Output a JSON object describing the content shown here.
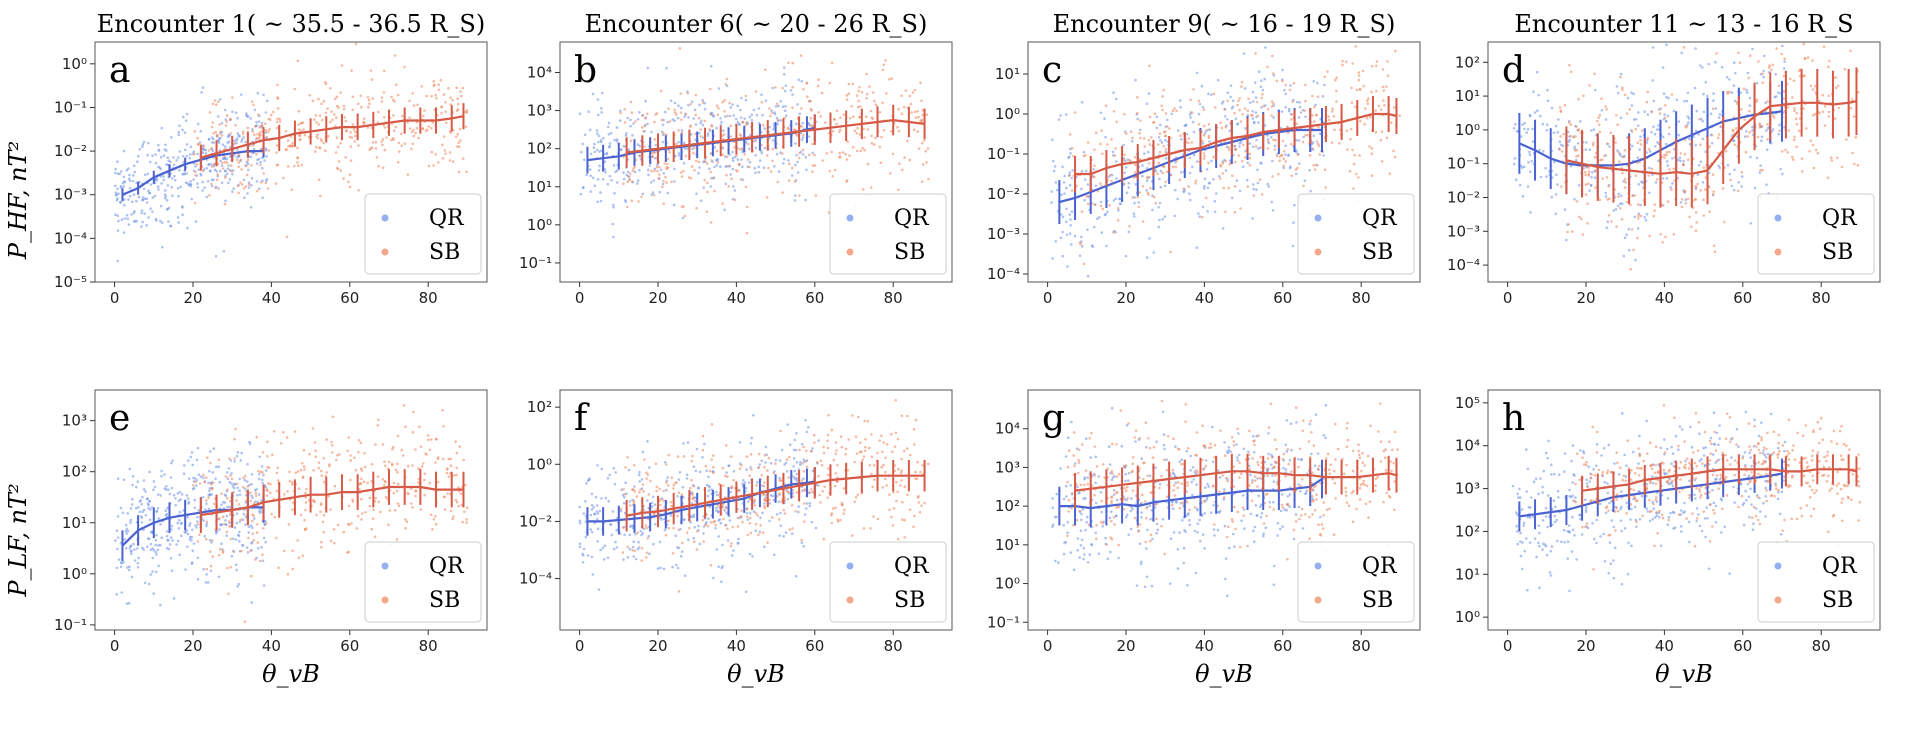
{
  "colors": {
    "qr": "#6b8fe6",
    "sb": "#ef8258",
    "qr_line": "#4a63d0",
    "sb_line": "#d65a45"
  },
  "figure": {
    "row_ylabels": [
      "P_HF, nT²",
      "P_LF, nT²"
    ],
    "xlabel": "θ_vB",
    "legend": {
      "qr": "QR",
      "sb": "SB"
    }
  },
  "chart_data": [
    {
      "type": "scatter",
      "panel": "a",
      "title": "Encounter 1( ~ 35.5 - 36.5 R_S)",
      "ylim_exp": [
        -5,
        0.5
      ],
      "yticks": [
        "10⁻⁵",
        "10⁻⁴",
        "10⁻³",
        "10⁻²",
        "10⁻¹",
        "10⁰"
      ],
      "ytick_exps": [
        -5,
        -4,
        -3,
        -2,
        -1,
        0
      ],
      "xlim": [
        -5,
        95
      ],
      "xticks": [
        "0",
        "20",
        "40",
        "60",
        "80"
      ],
      "xtick_vals": [
        0,
        20,
        40,
        60,
        80
      ],
      "series": [
        {
          "name": "QR",
          "x": [
            2,
            6,
            10,
            14,
            18,
            22,
            26,
            30,
            34,
            38
          ],
          "y_exp": [
            -3.0,
            -2.85,
            -2.6,
            -2.45,
            -2.3,
            -2.2,
            -2.1,
            -2.05,
            -2.0,
            -2.0
          ],
          "err": 0.15,
          "spread": 0.55
        },
        {
          "name": "SB",
          "x": [
            22,
            26,
            30,
            34,
            38,
            42,
            46,
            50,
            54,
            58,
            62,
            66,
            70,
            74,
            78,
            82,
            86,
            89
          ],
          "y_exp": [
            -2.15,
            -2.05,
            -1.95,
            -1.85,
            -1.75,
            -1.7,
            -1.6,
            -1.55,
            -1.5,
            -1.45,
            -1.45,
            -1.4,
            -1.35,
            -1.3,
            -1.3,
            -1.3,
            -1.25,
            -1.2
          ],
          "err": 0.3,
          "spread": 0.6
        }
      ]
    },
    {
      "type": "scatter",
      "panel": "b",
      "title": "Encounter 6( ~ 20 - 26 R_S)",
      "ylim_exp": [
        -1.5,
        4.8
      ],
      "yticks": [
        "10⁻¹",
        "10⁰",
        "10¹",
        "10²",
        "10³",
        "10⁴"
      ],
      "ytick_exps": [
        -1,
        0,
        1,
        2,
        3,
        4
      ],
      "xlim": [
        -5,
        95
      ],
      "xticks": [
        "0",
        "20",
        "40",
        "60",
        "80"
      ],
      "xtick_vals": [
        0,
        20,
        40,
        60,
        80
      ],
      "series": [
        {
          "name": "QR",
          "x": [
            2,
            6,
            10,
            14,
            18,
            22,
            26,
            30,
            34,
            38,
            42,
            46,
            50,
            54,
            58,
            60
          ],
          "y_exp": [
            1.7,
            1.75,
            1.8,
            1.9,
            1.95,
            2.0,
            2.05,
            2.1,
            2.15,
            2.2,
            2.25,
            2.3,
            2.35,
            2.4,
            2.5,
            2.55
          ],
          "err": 0.35,
          "spread": 0.7
        },
        {
          "name": "SB",
          "x": [
            12,
            16,
            20,
            24,
            28,
            32,
            36,
            40,
            44,
            48,
            52,
            56,
            60,
            64,
            68,
            72,
            76,
            80,
            84,
            88
          ],
          "y_exp": [
            1.9,
            1.95,
            2.0,
            2.05,
            2.1,
            2.15,
            2.2,
            2.25,
            2.3,
            2.35,
            2.4,
            2.45,
            2.5,
            2.55,
            2.6,
            2.65,
            2.7,
            2.75,
            2.7,
            2.65
          ],
          "err": 0.4,
          "spread": 0.8
        }
      ]
    },
    {
      "type": "scatter",
      "panel": "c",
      "title": "Encounter 9( ~ 16 - 19 R_S)",
      "ylim_exp": [
        -4.2,
        1.8
      ],
      "yticks": [
        "10⁻⁴",
        "10⁻³",
        "10⁻²",
        "10⁻¹",
        "10⁰",
        "10¹"
      ],
      "ytick_exps": [
        -4,
        -3,
        -2,
        -1,
        0,
        1
      ],
      "xlim": [
        -5,
        95
      ],
      "xticks": [
        "0",
        "20",
        "40",
        "60",
        "80"
      ],
      "xtick_vals": [
        0,
        20,
        40,
        60,
        80
      ],
      "series": [
        {
          "name": "QR",
          "x": [
            3,
            7,
            11,
            15,
            19,
            23,
            27,
            31,
            35,
            39,
            43,
            47,
            51,
            55,
            59,
            63,
            67,
            70
          ],
          "y_exp": [
            -2.2,
            -2.1,
            -1.95,
            -1.8,
            -1.65,
            -1.5,
            -1.35,
            -1.2,
            -1.05,
            -0.9,
            -0.8,
            -0.7,
            -0.6,
            -0.5,
            -0.45,
            -0.4,
            -0.4,
            -0.4
          ],
          "err": 0.55,
          "spread": 0.9
        },
        {
          "name": "SB",
          "x": [
            7,
            11,
            15,
            19,
            23,
            27,
            31,
            35,
            39,
            43,
            47,
            51,
            55,
            59,
            63,
            67,
            71,
            75,
            79,
            83,
            87,
            89
          ],
          "y_exp": [
            -1.5,
            -1.5,
            -1.35,
            -1.25,
            -1.2,
            -1.1,
            -1.0,
            -0.9,
            -0.85,
            -0.7,
            -0.6,
            -0.55,
            -0.45,
            -0.4,
            -0.35,
            -0.3,
            -0.25,
            -0.2,
            -0.1,
            0.0,
            0.0,
            -0.05
          ],
          "err": 0.45,
          "spread": 0.85
        }
      ]
    },
    {
      "type": "scatter",
      "panel": "d",
      "title": "Encounter 11 ~ 13 - 16 R_S",
      "ylim_exp": [
        -4.5,
        2.6
      ],
      "yticks": [
        "10⁻⁴",
        "10⁻³",
        "10⁻²",
        "10⁻¹",
        "10⁰",
        "10¹",
        "10²"
      ],
      "ytick_exps": [
        -4,
        -3,
        -2,
        -1,
        0,
        1,
        2
      ],
      "xlim": [
        -5,
        95
      ],
      "xticks": [
        "0",
        "20",
        "40",
        "60",
        "80"
      ],
      "xtick_vals": [
        0,
        20,
        40,
        60,
        80
      ],
      "series": [
        {
          "name": "QR",
          "x": [
            3,
            7,
            11,
            15,
            19,
            23,
            27,
            31,
            35,
            39,
            43,
            47,
            51,
            55,
            59,
            63,
            67,
            70
          ],
          "y_exp": [
            -0.4,
            -0.6,
            -0.85,
            -1.0,
            -1.05,
            -1.05,
            -1.05,
            -1.0,
            -0.85,
            -0.6,
            -0.35,
            -0.15,
            0.05,
            0.25,
            0.35,
            0.45,
            0.5,
            0.55
          ],
          "err": 0.9,
          "spread": 1.1
        },
        {
          "name": "SB",
          "x": [
            15,
            19,
            23,
            27,
            31,
            35,
            39,
            43,
            47,
            51,
            55,
            59,
            63,
            67,
            71,
            75,
            79,
            83,
            87,
            89
          ],
          "y_exp": [
            -0.9,
            -1.0,
            -1.1,
            -1.15,
            -1.2,
            -1.25,
            -1.3,
            -1.25,
            -1.3,
            -1.2,
            -0.6,
            0.0,
            0.4,
            0.7,
            0.75,
            0.8,
            0.8,
            0.75,
            0.8,
            0.85
          ],
          "err": 1.0,
          "spread": 1.2
        }
      ]
    },
    {
      "type": "scatter",
      "panel": "e",
      "title": "",
      "ylim_exp": [
        -1.1,
        3.6
      ],
      "yticks": [
        "10⁻¹",
        "10⁰",
        "10¹",
        "10²",
        "10³"
      ],
      "ytick_exps": [
        -1,
        0,
        1,
        2,
        3
      ],
      "xlim": [
        -5,
        95
      ],
      "xticks": [
        "0",
        "20",
        "40",
        "60",
        "80"
      ],
      "xtick_vals": [
        0,
        20,
        40,
        60,
        80
      ],
      "series": [
        {
          "name": "QR",
          "x": [
            2,
            6,
            10,
            14,
            18,
            22,
            26,
            30,
            34,
            38
          ],
          "y_exp": [
            0.55,
            0.85,
            1.0,
            1.1,
            1.15,
            1.2,
            1.25,
            1.25,
            1.3,
            1.3
          ],
          "err": 0.3,
          "spread": 0.6
        },
        {
          "name": "SB",
          "x": [
            22,
            26,
            30,
            34,
            38,
            42,
            46,
            50,
            54,
            58,
            62,
            66,
            70,
            74,
            78,
            82,
            86,
            89
          ],
          "y_exp": [
            1.15,
            1.2,
            1.25,
            1.3,
            1.4,
            1.45,
            1.5,
            1.55,
            1.55,
            1.6,
            1.6,
            1.65,
            1.7,
            1.7,
            1.7,
            1.65,
            1.65,
            1.65
          ],
          "err": 0.35,
          "spread": 0.65
        }
      ]
    },
    {
      "type": "scatter",
      "panel": "f",
      "title": "",
      "ylim_exp": [
        -5.8,
        2.6
      ],
      "yticks": [
        "10⁻⁴",
        "10⁻²",
        "10⁰",
        "10²"
      ],
      "ytick_exps": [
        -4,
        -2,
        0,
        2
      ],
      "xlim": [
        -5,
        95
      ],
      "xticks": [
        "0",
        "20",
        "40",
        "60",
        "80"
      ],
      "xtick_vals": [
        0,
        20,
        40,
        60,
        80
      ],
      "series": [
        {
          "name": "QR",
          "x": [
            2,
            6,
            10,
            14,
            18,
            22,
            26,
            30,
            34,
            38,
            42,
            46,
            50,
            54,
            58,
            60
          ],
          "y_exp": [
            -2.0,
            -2.0,
            -1.95,
            -1.9,
            -1.85,
            -1.75,
            -1.6,
            -1.5,
            -1.4,
            -1.3,
            -1.2,
            -1.0,
            -0.85,
            -0.7,
            -0.65,
            -0.6
          ],
          "err": 0.5,
          "spread": 1.0
        },
        {
          "name": "SB",
          "x": [
            12,
            16,
            20,
            24,
            28,
            32,
            36,
            40,
            44,
            48,
            52,
            56,
            60,
            64,
            68,
            72,
            76,
            80,
            84,
            88
          ],
          "y_exp": [
            -1.8,
            -1.7,
            -1.65,
            -1.55,
            -1.45,
            -1.35,
            -1.25,
            -1.15,
            -1.05,
            -0.95,
            -0.85,
            -0.75,
            -0.65,
            -0.55,
            -0.5,
            -0.45,
            -0.4,
            -0.4,
            -0.4,
            -0.4
          ],
          "err": 0.55,
          "spread": 1.0
        }
      ]
    },
    {
      "type": "scatter",
      "panel": "g",
      "title": "",
      "ylim_exp": [
        -1.2,
        5.0
      ],
      "yticks": [
        "10⁻¹",
        "10⁰",
        "10¹",
        "10²",
        "10³",
        "10⁴"
      ],
      "ytick_exps": [
        -1,
        0,
        1,
        2,
        3,
        4
      ],
      "xlim": [
        -5,
        95
      ],
      "xticks": [
        "0",
        "20",
        "40",
        "60",
        "80"
      ],
      "xtick_vals": [
        0,
        20,
        40,
        60,
        80
      ],
      "series": [
        {
          "name": "QR",
          "x": [
            3,
            7,
            11,
            15,
            19,
            23,
            27,
            31,
            35,
            39,
            43,
            47,
            51,
            55,
            59,
            63,
            67,
            70
          ],
          "y_exp": [
            2.0,
            2.0,
            1.95,
            2.0,
            2.05,
            2.0,
            2.1,
            2.15,
            2.2,
            2.25,
            2.3,
            2.35,
            2.4,
            2.4,
            2.4,
            2.45,
            2.5,
            2.7
          ],
          "err": 0.5,
          "spread": 0.85
        },
        {
          "name": "SB",
          "x": [
            7,
            11,
            15,
            19,
            23,
            27,
            31,
            35,
            39,
            43,
            47,
            51,
            55,
            59,
            63,
            67,
            71,
            75,
            79,
            83,
            87,
            89
          ],
          "y_exp": [
            2.4,
            2.45,
            2.5,
            2.55,
            2.6,
            2.65,
            2.7,
            2.75,
            2.8,
            2.85,
            2.9,
            2.9,
            2.85,
            2.85,
            2.8,
            2.8,
            2.75,
            2.75,
            2.75,
            2.8,
            2.85,
            2.8
          ],
          "err": 0.45,
          "spread": 0.75
        }
      ]
    },
    {
      "type": "scatter",
      "panel": "h",
      "title": "",
      "ylim_exp": [
        -0.3,
        5.3
      ],
      "yticks": [
        "10⁰",
        "10¹",
        "10²",
        "10³",
        "10⁴",
        "10⁵"
      ],
      "ytick_exps": [
        0,
        1,
        2,
        3,
        4,
        5
      ],
      "xlim": [
        -5,
        95
      ],
      "xticks": [
        "0",
        "20",
        "40",
        "60",
        "80"
      ],
      "xtick_vals": [
        0,
        20,
        40,
        60,
        80
      ],
      "series": [
        {
          "name": "QR",
          "x": [
            3,
            7,
            11,
            15,
            19,
            23,
            27,
            31,
            35,
            39,
            43,
            47,
            51,
            55,
            59,
            63,
            67,
            70
          ],
          "y_exp": [
            2.35,
            2.4,
            2.45,
            2.5,
            2.6,
            2.7,
            2.8,
            2.85,
            2.9,
            2.95,
            3.0,
            3.05,
            3.1,
            3.15,
            3.2,
            3.25,
            3.3,
            3.35
          ],
          "err": 0.35,
          "spread": 0.7
        },
        {
          "name": "SB",
          "x": [
            19,
            23,
            27,
            31,
            35,
            39,
            43,
            47,
            51,
            55,
            59,
            63,
            67,
            71,
            75,
            79,
            83,
            87,
            89
          ],
          "y_exp": [
            2.95,
            3.0,
            3.05,
            3.1,
            3.2,
            3.25,
            3.3,
            3.35,
            3.4,
            3.45,
            3.45,
            3.45,
            3.45,
            3.4,
            3.4,
            3.45,
            3.45,
            3.45,
            3.4
          ],
          "err": 0.35,
          "spread": 0.6
        }
      ]
    }
  ]
}
